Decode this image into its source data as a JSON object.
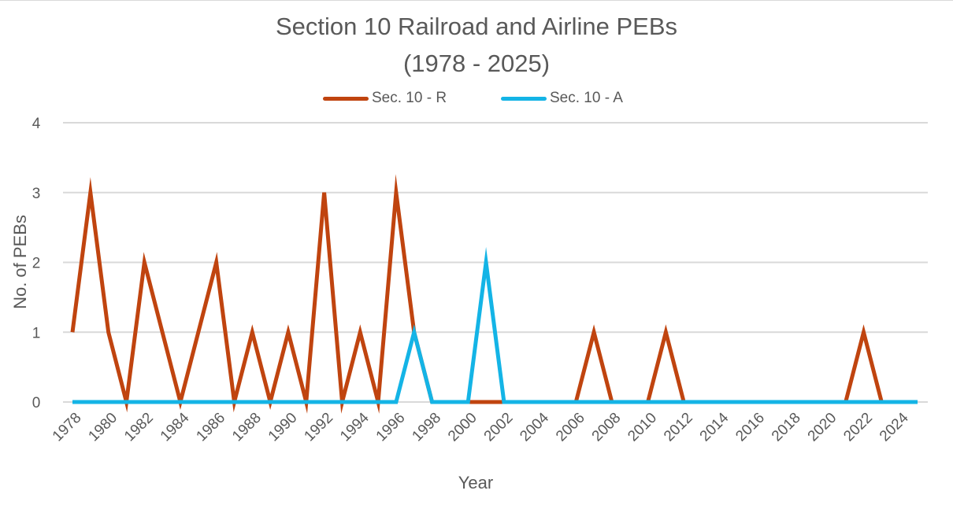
{
  "chart_data": {
    "type": "line",
    "title": "Section 10 Railroad and Airline PEBs",
    "subtitle": "(1978 - 2025)",
    "xlabel": "Year",
    "ylabel": "No. of PEBs",
    "ylim": [
      0,
      4
    ],
    "yticks": [
      0,
      1,
      2,
      3,
      4
    ],
    "grid": true,
    "legend_position": "top-center",
    "x": [
      1978,
      1979,
      1980,
      1981,
      1982,
      1983,
      1984,
      1985,
      1986,
      1987,
      1988,
      1989,
      1990,
      1991,
      1992,
      1993,
      1994,
      1995,
      1996,
      1997,
      1998,
      1999,
      2000,
      2001,
      2002,
      2003,
      2004,
      2005,
      2006,
      2007,
      2008,
      2009,
      2010,
      2011,
      2012,
      2013,
      2014,
      2015,
      2016,
      2017,
      2018,
      2019,
      2020,
      2021,
      2022,
      2023,
      2024,
      2025
    ],
    "x_tick_labels": [
      "1978",
      "1980",
      "1982",
      "1984",
      "1986",
      "1988",
      "1990",
      "1992",
      "1994",
      "1996",
      "1998",
      "2000",
      "2002",
      "2004",
      "2006",
      "2008",
      "2010",
      "2012",
      "2014",
      "2016",
      "2018",
      "2020",
      "2022",
      "2024"
    ],
    "series": [
      {
        "name": "Sec. 10 - R",
        "color": "#c0440f",
        "values": [
          1,
          3,
          1,
          0,
          2,
          1,
          0,
          1,
          2,
          0,
          1,
          0,
          1,
          0,
          3,
          0,
          1,
          0,
          3,
          1,
          0,
          0,
          0,
          0,
          0,
          0,
          0,
          0,
          0,
          1,
          0,
          0,
          0,
          1,
          0,
          0,
          0,
          0,
          0,
          0,
          0,
          0,
          0,
          0,
          1,
          0,
          0,
          0
        ]
      },
      {
        "name": "Sec. 10 - A",
        "color": "#14b4e6",
        "values": [
          0,
          0,
          0,
          0,
          0,
          0,
          0,
          0,
          0,
          0,
          0,
          0,
          0,
          0,
          0,
          0,
          0,
          0,
          0,
          1,
          0,
          0,
          0,
          2,
          0,
          0,
          0,
          0,
          0,
          0,
          0,
          0,
          0,
          0,
          0,
          0,
          0,
          0,
          0,
          0,
          0,
          0,
          0,
          0,
          0,
          0,
          0,
          0
        ]
      }
    ]
  }
}
